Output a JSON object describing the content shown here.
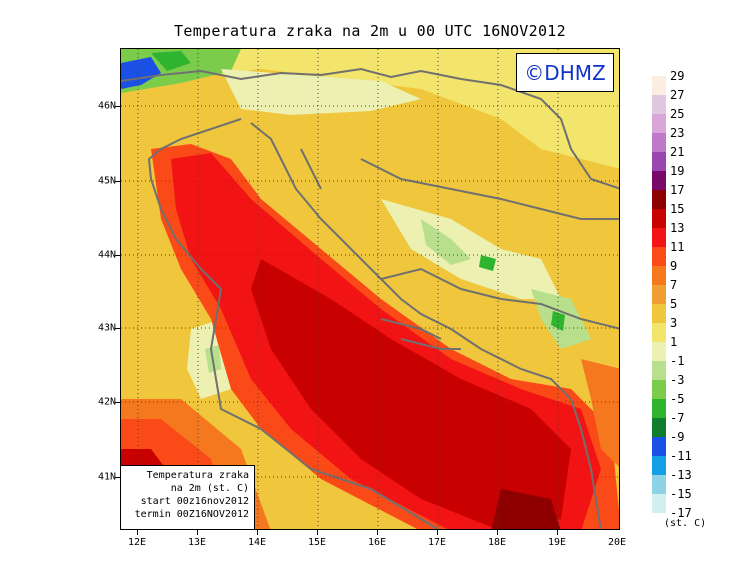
{
  "title": "Temperatura zraka na 2m u 00 UTC 16NOV2012",
  "logo": "©DHMZ",
  "info": {
    "line1": "Temperatura zraka",
    "line2": "na 2m (st. C)",
    "line3": "start 00z16nov2012",
    "line4": "termin 00Z16NOV2012"
  },
  "latitudes": [
    "46N",
    "45N",
    "44N",
    "43N",
    "42N",
    "41N"
  ],
  "longitudes": [
    "12E",
    "13E",
    "14E",
    "15E",
    "16E",
    "17E",
    "18E",
    "19E",
    "20E"
  ],
  "colorbar": {
    "labels": [
      "29",
      "27",
      "25",
      "23",
      "21",
      "19",
      "17",
      "15",
      "13",
      "11",
      "9",
      "7",
      "5",
      "3",
      "1",
      "-1",
      "-3",
      "-5",
      "-7",
      "-9",
      "-11",
      "-13",
      "-15",
      "-17"
    ],
    "colors": [
      "#fbeee0",
      "#e0c8e0",
      "#d8a6d8",
      "#c078c8",
      "#9a46ae",
      "#7a0a6a",
      "#8e0000",
      "#c80000",
      "#f21414",
      "#fa4a18",
      "#f5781e",
      "#f0a032",
      "#efc63c",
      "#f3e46c",
      "#ecf0b0",
      "#b8e08c",
      "#7ccc4c",
      "#2eb42e",
      "#117d2e",
      "#1a50e6",
      "#14a0e6",
      "#8ed2e6",
      "#d2f0f0",
      "#ffffff"
    ],
    "unit": "(st. C)"
  }
}
